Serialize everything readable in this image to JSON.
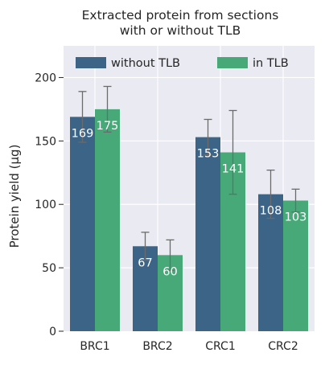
{
  "chart_data": {
    "type": "bar",
    "title": [
      "Extracted protein from sections",
      "with or without TLB"
    ],
    "xlabel": "",
    "ylabel": "Protein yield (µg)",
    "ylim": [
      0,
      225
    ],
    "yticks": [
      0,
      50,
      100,
      150,
      200
    ],
    "grid": true,
    "legend_position": "top",
    "categories": [
      "BRC1",
      "BRC2",
      "CRC1",
      "CRC2"
    ],
    "series": [
      {
        "name": "without TLB",
        "color": "#3b6486",
        "values": [
          169,
          67,
          153,
          108
        ],
        "errors": [
          20,
          11,
          14,
          19
        ],
        "labels": [
          "169",
          "67",
          "153",
          "108"
        ]
      },
      {
        "name": "in TLB",
        "color": "#47a878",
        "values": [
          175,
          60,
          141,
          103
        ],
        "errors": [
          18,
          12,
          33,
          9
        ],
        "labels": [
          "175",
          "60",
          "141",
          "103"
        ]
      }
    ],
    "colors": {
      "plot_background": "#eaeaf2",
      "grid": "#ffffff",
      "error_bar": "#6b6b6b",
      "text": "#262626",
      "data_label": "#ffffff"
    }
  }
}
